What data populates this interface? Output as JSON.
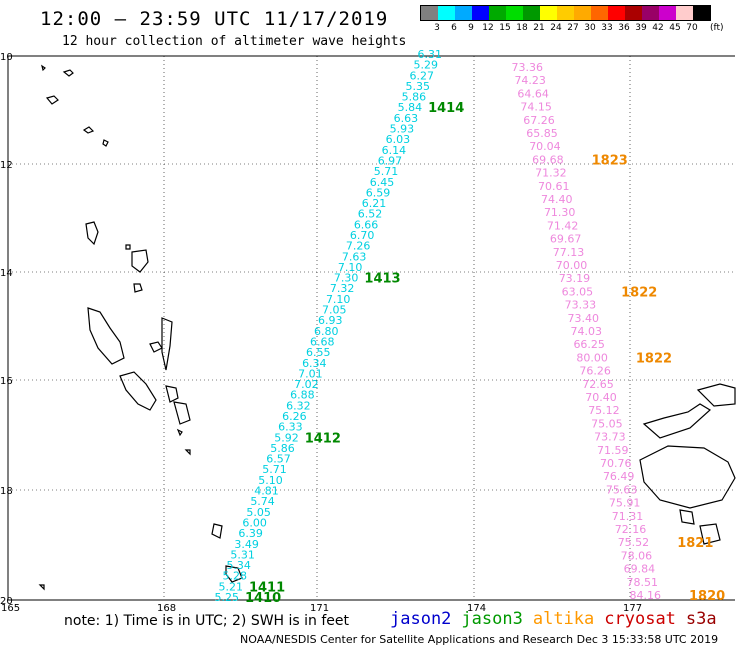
{
  "header": {
    "title": "12:00 — 23:59 UTC 11/17/2019",
    "subtitle": "12 hour collection of altimeter wave heights"
  },
  "legend": {
    "labels": [
      "3",
      "6",
      "9",
      "12",
      "15",
      "18",
      "21",
      "24",
      "27",
      "30",
      "33",
      "36",
      "39",
      "42",
      "45",
      "70"
    ],
    "unit": "(ft)",
    "colors": [
      "#808080",
      "#00ffff",
      "#00aaff",
      "#0000ff",
      "#00aa00",
      "#00dd00",
      "#009900",
      "#ffff00",
      "#ffcc00",
      "#ffaa00",
      "#ff6600",
      "#ff0000",
      "#aa0000",
      "#990066",
      "#cc00cc",
      "#ffcccc",
      "#000000"
    ]
  },
  "axes": {
    "lat_labels": [
      "10",
      "12",
      "14",
      "16",
      "18",
      "20"
    ],
    "lon_labels": [
      "165",
      "168",
      "171",
      "174",
      "177"
    ]
  },
  "tracks": [
    {
      "name": "jason3",
      "color": "#00d0e0",
      "values": [
        "6.31",
        "5.29",
        "6.27",
        "5.35",
        "5.86",
        "5.84",
        "6.63",
        "5.93",
        "6.03",
        "6.14",
        "6.97",
        "5.71",
        "6.45",
        "6.59",
        "6.21",
        "6.52",
        "6.66",
        "6.70",
        "7.26",
        "7.63",
        "7.10",
        "7.30",
        "7.32",
        "7.10",
        "7.05",
        "6.93",
        "6.80",
        "6.68",
        "6.55",
        "6.34",
        "7.01",
        "7.02",
        "6.88",
        "6.32",
        "6.26",
        "6.33",
        "5.92",
        "5.86",
        "6.57",
        "5.71",
        "5.10",
        "4.81",
        "5.74",
        "5.05",
        "6.00",
        "6.39",
        "3.49",
        "5.31",
        "5.34",
        "5.28",
        "5.21",
        "5.25"
      ],
      "times": [
        {
          "label": "1414",
          "index": 5
        },
        {
          "label": "1413",
          "index": 21
        },
        {
          "label": "1412",
          "index": 36
        },
        {
          "label": "1411",
          "index": 50
        },
        {
          "label": "1410",
          "index": 51
        }
      ]
    },
    {
      "name": "altika",
      "color": "#ee88dd",
      "values": [
        "73.36",
        "74.23",
        "64.64",
        "74.15",
        "67.26",
        "65.85",
        "70.04",
        "69.68",
        "71.32",
        "70.61",
        "74.40",
        "71.30",
        "71.42",
        "69.67",
        "77.13",
        "70.00",
        "73.19",
        "63.05",
        "73.33",
        "73.40",
        "74.03",
        "66.25",
        "80.00",
        "76.26",
        "72.65",
        "70.40",
        "75.12",
        "75.05",
        "73.73",
        "71.59",
        "70.76",
        "76.49",
        "75.63",
        "75.91",
        "71.31",
        "72.16",
        "75.52",
        "78.06",
        "69.84",
        "78.51",
        "84.16"
      ],
      "times": [
        {
          "label": "1823",
          "index": 7
        },
        {
          "label": "1822",
          "index": 17
        },
        {
          "label": "1822",
          "index": 22
        },
        {
          "label": "1821",
          "index": 36
        },
        {
          "label": "1820",
          "index": 40
        }
      ]
    }
  ],
  "footer": {
    "note": "note: 1) Time is in UTC; 2) SWH is in feet",
    "satellites": [
      {
        "name": "jason2",
        "color": "#0000cc"
      },
      {
        "name": "jason3",
        "color": "#009900"
      },
      {
        "name": "altika",
        "color": "#ff9900"
      },
      {
        "name": "cryosat",
        "color": "#cc0000"
      },
      {
        "name": "s3a",
        "color": "#990000"
      }
    ],
    "credit": "NOAA/NESDIS Center for Satellite Applications and Research   Dec  3 15:33:58 UTC 2019"
  }
}
